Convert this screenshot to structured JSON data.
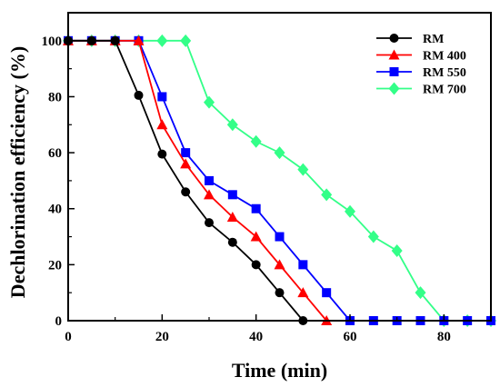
{
  "chart_data": {
    "type": "line",
    "xlabel": "Time (min)",
    "ylabel": "Dechlorination efficiency (%)",
    "xlim": [
      0,
      90
    ],
    "ylim": [
      0,
      110
    ],
    "xticks": [
      0,
      20,
      40,
      60,
      80
    ],
    "yticks": [
      0,
      20,
      40,
      60,
      80,
      100
    ],
    "grid": false,
    "legend_position": "top-right",
    "x": [
      0,
      5,
      10,
      15,
      20,
      25,
      30,
      35,
      40,
      45,
      50,
      55,
      60,
      65,
      70,
      75,
      80,
      85,
      90
    ],
    "series": [
      {
        "name": "RM",
        "color": "#000000",
        "marker": "circle",
        "values": [
          100,
          100,
          100,
          80.5,
          59.5,
          46,
          35,
          28,
          20,
          10,
          0,
          null,
          null,
          null,
          null,
          null,
          null,
          null,
          null
        ]
      },
      {
        "name": "RM 400",
        "color": "#ff0000",
        "marker": "triangle",
        "values": [
          100,
          100,
          100,
          100,
          70,
          56,
          45,
          37,
          30,
          20,
          10,
          0,
          null,
          null,
          null,
          null,
          null,
          null,
          null
        ]
      },
      {
        "name": "RM 550",
        "color": "#0000ff",
        "marker": "square",
        "values": [
          100,
          100,
          100,
          100,
          80,
          60,
          50,
          45,
          40,
          30,
          20,
          10,
          0,
          0,
          0,
          0,
          0,
          0,
          0
        ]
      },
      {
        "name": "RM 700",
        "color": "#33ff88",
        "marker": "diamond",
        "values": [
          100,
          100,
          100,
          100,
          100,
          100,
          78,
          70,
          64,
          60,
          54,
          45,
          39,
          30,
          25,
          10,
          0,
          0,
          0
        ]
      }
    ]
  }
}
